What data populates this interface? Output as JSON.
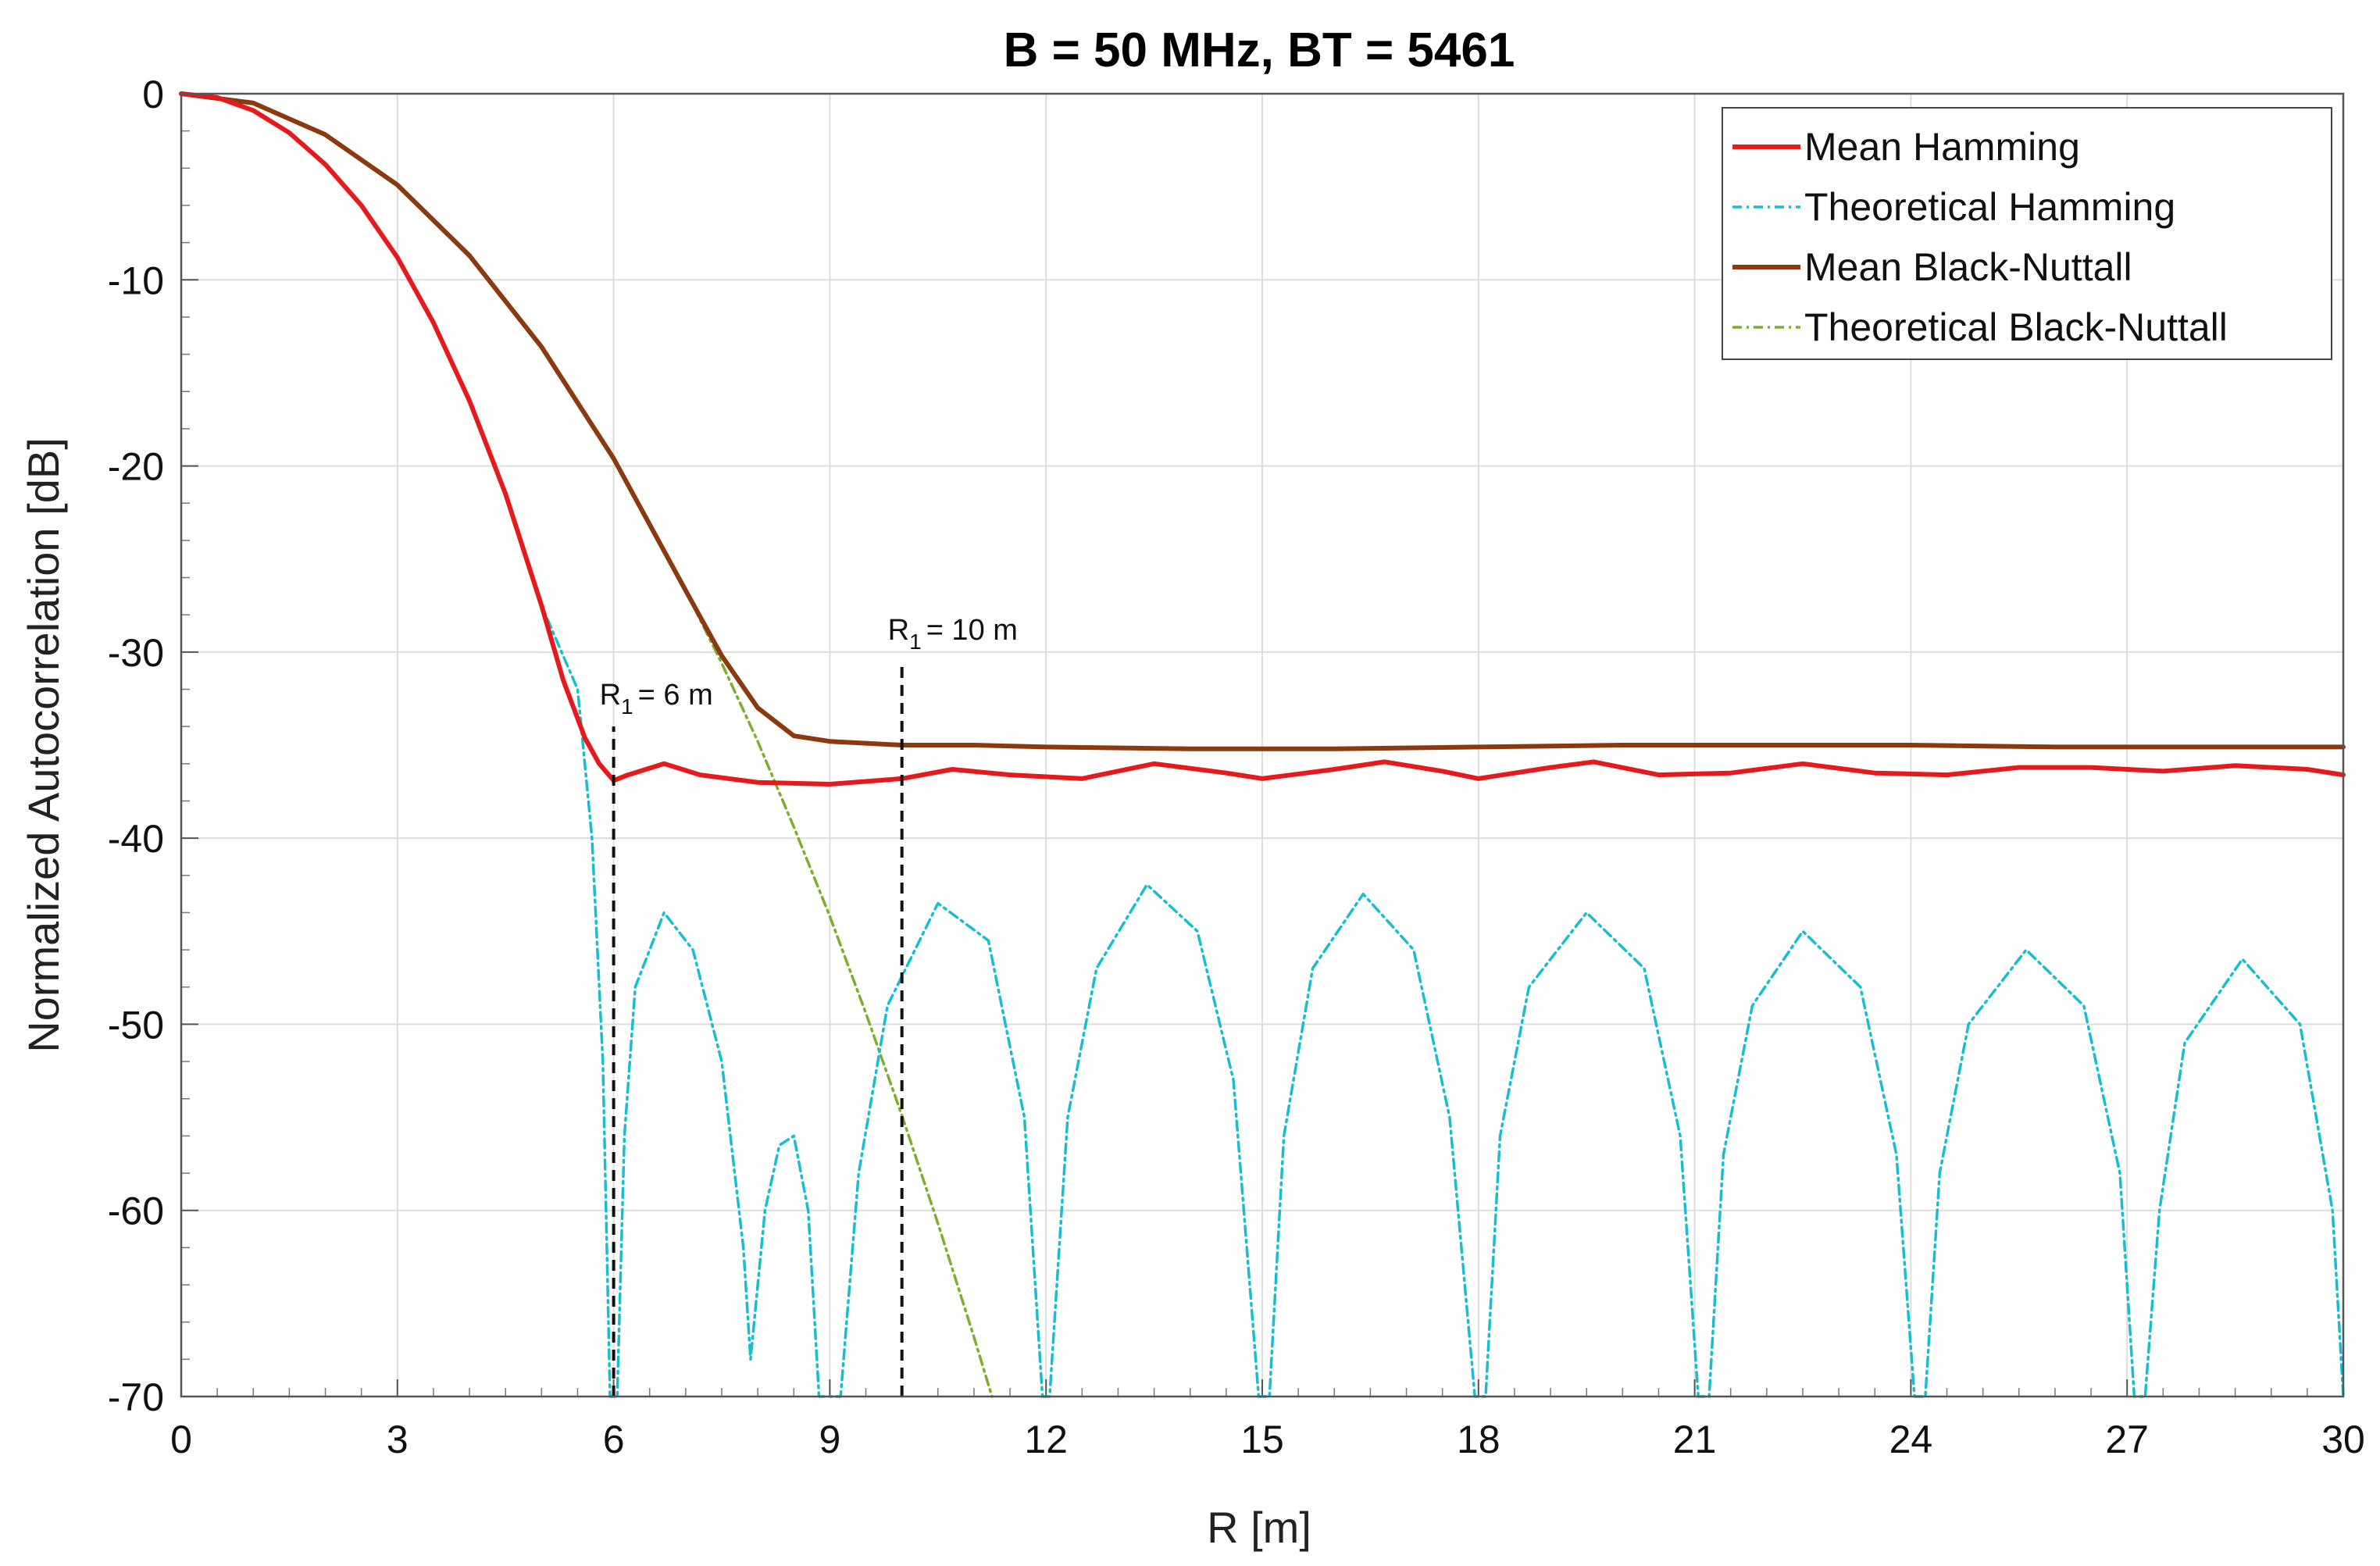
{
  "chart_data": {
    "type": "line",
    "title": "B = 50 MHz, BT = 5461",
    "xlabel": "R [m]",
    "ylabel": "Normalized Autocorrelation [dB]",
    "xlim": [
      0,
      30
    ],
    "ylim": [
      -70,
      0
    ],
    "xticks": [
      0,
      3,
      6,
      9,
      12,
      15,
      18,
      21,
      24,
      27,
      30
    ],
    "yticks": [
      0,
      -10,
      -20,
      -30,
      -40,
      -50,
      -60,
      -70
    ],
    "xtick_labels": [
      "0",
      "3",
      "6",
      "9",
      "12",
      "15",
      "18",
      "21",
      "24",
      "27",
      "30"
    ],
    "ytick_labels": [
      "0",
      "-10",
      "-20",
      "-30",
      "-40",
      "-50",
      "-60",
      "-70"
    ],
    "grid": true,
    "legend_position": "top-right",
    "series": [
      {
        "name": "Mean Hamming",
        "color": "#e41a1c",
        "style": "solid",
        "x": [
          0,
          0.5,
          1,
          1.5,
          2,
          2.5,
          3,
          3.5,
          4,
          4.5,
          5,
          5.3,
          5.6,
          5.8,
          6.0,
          6.2,
          6.7,
          7.2,
          8,
          9,
          10,
          10.7,
          11.5,
          12.5,
          13.5,
          14.5,
          15,
          16,
          16.7,
          17.5,
          18,
          19,
          19.6,
          20.5,
          21.5,
          22.5,
          23.5,
          24.5,
          25.5,
          26.5,
          27.5,
          28.5,
          29.5,
          30
        ],
        "y": [
          0,
          -0.2,
          -0.9,
          -2.1,
          -3.8,
          -6.0,
          -8.8,
          -12.3,
          -16.5,
          -21.5,
          -27.5,
          -31.5,
          -34.6,
          -36.0,
          -36.9,
          -36.6,
          -36.0,
          -36.6,
          -37.0,
          -37.1,
          -36.8,
          -36.3,
          -36.6,
          -36.8,
          -36.0,
          -36.5,
          -36.8,
          -36.3,
          -35.9,
          -36.4,
          -36.8,
          -36.2,
          -35.9,
          -36.6,
          -36.5,
          -36.0,
          -36.5,
          -36.6,
          -36.2,
          -36.2,
          -36.4,
          -36.1,
          -36.3,
          -36.6
        ]
      },
      {
        "name": "Theoretical Hamming",
        "color": "#17becf",
        "style": "dashdot",
        "x": [
          0,
          0.5,
          1,
          1.5,
          2,
          2.5,
          3,
          3.5,
          4,
          4.5,
          5,
          5.5,
          5.7,
          5.85,
          5.95,
          6.05,
          6.15,
          6.3,
          6.7,
          7.1,
          7.5,
          7.8,
          7.9,
          8.1,
          8.3,
          8.5,
          8.7,
          8.85,
          9.15,
          9.4,
          9.8,
          10.5,
          11.2,
          11.7,
          11.95,
          12.05,
          12.3,
          12.7,
          13.4,
          14.1,
          14.6,
          14.95,
          15.1,
          15.3,
          15.7,
          16.4,
          17.1,
          17.6,
          17.95,
          18.1,
          18.3,
          18.7,
          19.5,
          20.3,
          20.8,
          21.05,
          21.2,
          21.4,
          21.8,
          22.5,
          23.3,
          23.8,
          24.05,
          24.2,
          24.4,
          24.8,
          25.6,
          26.4,
          26.9,
          27.1,
          27.25,
          27.45,
          27.8,
          28.6,
          29.4,
          29.85,
          30
        ],
        "y": [
          0,
          -0.2,
          -0.9,
          -2.1,
          -3.8,
          -6.0,
          -8.8,
          -12.3,
          -16.5,
          -21.5,
          -27.5,
          -32,
          -40,
          -52,
          -70,
          -70,
          -56,
          -48,
          -44,
          -46,
          -52,
          -62,
          -68,
          -60,
          -56.5,
          -56,
          -60,
          -70,
          -70,
          -58,
          -49,
          -43.5,
          -45.5,
          -55,
          -70,
          -70,
          -55,
          -47,
          -42.5,
          -45,
          -53,
          -70,
          -70,
          -56,
          -47,
          -43,
          -46,
          -55,
          -70,
          -70,
          -56,
          -48,
          -44,
          -47,
          -56,
          -70,
          -70,
          -57,
          -49,
          -45,
          -48,
          -57,
          -70,
          -70,
          -58,
          -50,
          -46,
          -49,
          -58,
          -70,
          -70,
          -60,
          -51,
          -46.5,
          -50,
          -60,
          -70
        ]
      },
      {
        "name": "Mean Black-Nuttall",
        "color": "#8b3a0f",
        "style": "solid",
        "x": [
          0,
          1,
          2,
          3,
          4,
          5,
          6,
          7,
          7.5,
          8,
          8.5,
          9,
          9.5,
          10,
          11,
          12,
          14,
          16,
          18,
          20,
          22,
          24,
          26,
          28,
          30
        ],
        "y": [
          0,
          -0.5,
          -2.2,
          -4.9,
          -8.7,
          -13.6,
          -19.6,
          -26.7,
          -30.2,
          -33.0,
          -34.5,
          -34.8,
          -34.9,
          -35.0,
          -35.0,
          -35.1,
          -35.2,
          -35.2,
          -35.1,
          -35.0,
          -35.0,
          -35.0,
          -35.1,
          -35.1,
          -35.1
        ]
      },
      {
        "name": "Theoretical Black-Nuttall",
        "color": "#7fae2e",
        "style": "dashdot",
        "x": [
          0,
          1,
          2,
          3,
          4,
          5,
          6,
          7,
          7.5,
          8,
          8.5,
          9,
          9.5,
          10,
          10.5,
          11,
          11.25
        ],
        "y": [
          0,
          -0.5,
          -2.2,
          -4.9,
          -8.7,
          -13.6,
          -19.6,
          -26.7,
          -30.6,
          -34.8,
          -39.4,
          -44.2,
          -49.4,
          -54.9,
          -60.7,
          -66.8,
          -70
        ]
      }
    ],
    "annotations": [
      {
        "x": 6,
        "y_from": -70,
        "y_to": -34,
        "style": "dashed",
        "label_main": "R",
        "label_sub": "1",
        "label_rest": "= 6 m"
      },
      {
        "x": 10,
        "y_from": -70,
        "y_to": -30.5,
        "style": "dashed",
        "label_main": "R",
        "label_sub": "1",
        "label_rest": "= 10 m"
      }
    ]
  }
}
